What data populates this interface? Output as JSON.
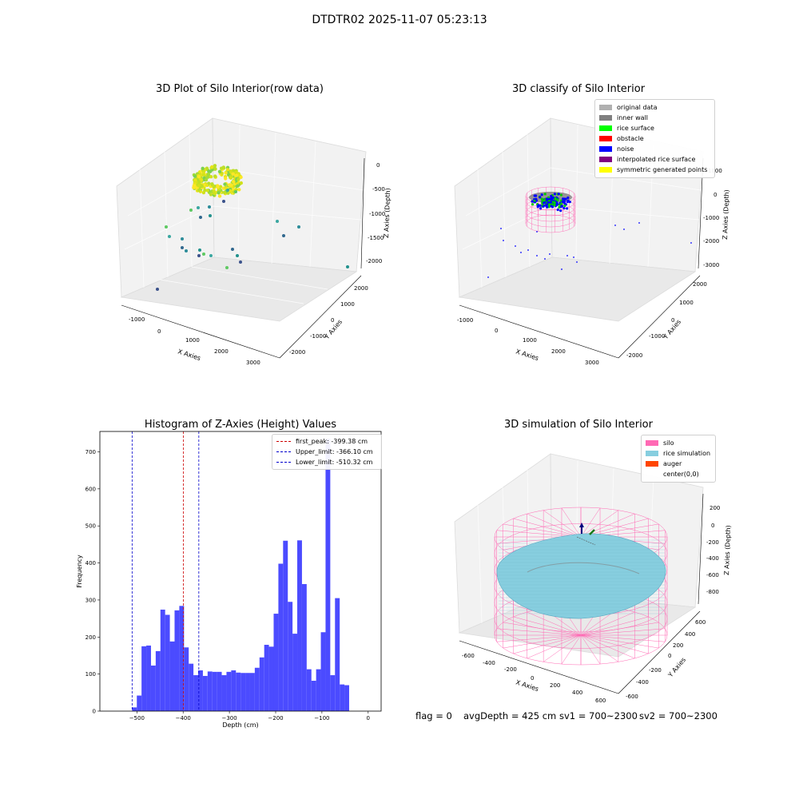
{
  "suptitle": "DTDTR02 2025-11-07 05:23:13",
  "colors": {
    "hist_bar": "#4b4bff",
    "peak_line": "#cc0000",
    "limit_line": "#0000cc",
    "silo": "#ff69b4",
    "rice": "#87cedf",
    "auger": "#ff4500"
  },
  "plot1": {
    "title": "3D Plot of Silo Interior(row data)",
    "xlabel": "X Axies",
    "ylabel": "Y Axies",
    "zlabel": "Z Axies (Depth)",
    "xticks": [
      "-1000",
      "0",
      "1000",
      "2000",
      "3000"
    ],
    "yticks": [
      "-2000",
      "-1000",
      "0",
      "1000",
      "2000"
    ],
    "zticks": [
      "0",
      "-500",
      "-1000",
      "-1500",
      "-2000"
    ]
  },
  "plot2": {
    "title": "3D classify of Silo Interior",
    "xlabel": "X Axies",
    "ylabel": "Y Axies",
    "zlabel": "Z Axies (Depth)",
    "xticks": [
      "-1000",
      "0",
      "1000",
      "2000",
      "3000"
    ],
    "yticks": [
      "-2000",
      "-1000",
      "0",
      "1000",
      "2000"
    ],
    "zticks": [
      "1000",
      "0",
      "-1000",
      "-2000",
      "-3000"
    ],
    "legend": [
      {
        "label": "original data",
        "color": "#b0b0b0"
      },
      {
        "label": "inner wall",
        "color": "#808080"
      },
      {
        "label": "rice surface",
        "color": "#00ff00"
      },
      {
        "label": "obstacle",
        "color": "#ff0000"
      },
      {
        "label": "noise",
        "color": "#0000ff"
      },
      {
        "label": "interpolated rice surface",
        "color": "#800080"
      },
      {
        "label": "symmetric generated points",
        "color": "#ffff00"
      }
    ]
  },
  "plot4": {
    "title": "3D simulation of Silo Interior",
    "xlabel": "X Axies",
    "ylabel": "Y Axies",
    "zlabel": "Z Axies (Depth)",
    "xticks": [
      "-600",
      "-400",
      "-200",
      "0",
      "200",
      "400",
      "600"
    ],
    "yticks": [
      "-600",
      "-400",
      "-200",
      "0",
      "200",
      "400",
      "600"
    ],
    "zticks": [
      "200",
      "0",
      "-200",
      "-400",
      "-600",
      "-800"
    ],
    "legend": [
      {
        "label": "silo",
        "color": "#ff69b4"
      },
      {
        "label": "rice simulation",
        "color": "#87cedf"
      },
      {
        "label": "auger",
        "color": "#ff4500"
      },
      {
        "label": "center(0,0)",
        "color": ""
      }
    ]
  },
  "chart_data": {
    "type": "bar",
    "title": "Histogram of Z-Axies (Height) Values",
    "xlabel": "Depth (cm)",
    "ylabel": "Frequency",
    "xlim": [
      -580,
      28
    ],
    "ylim": [
      0,
      755
    ],
    "xticks": [
      -500,
      -400,
      -300,
      -200,
      -100,
      0
    ],
    "yticks": [
      0,
      100,
      200,
      300,
      400,
      500,
      600,
      700
    ],
    "bin_start": -510.32,
    "bin_width": 10.2,
    "values": [
      10,
      42,
      175,
      177,
      123,
      162,
      274,
      260,
      188,
      272,
      284,
      172,
      128,
      97,
      110,
      95,
      107,
      106,
      106,
      97,
      106,
      110,
      104,
      103,
      103,
      103,
      117,
      145,
      179,
      174,
      263,
      398,
      460,
      295,
      209,
      461,
      343,
      113,
      82,
      113,
      213,
      735,
      97,
      305,
      72,
      70
    ],
    "lines": [
      {
        "label": "first_peak: -399.38 cm",
        "x": -399.38,
        "color": "#cc0000"
      },
      {
        "label": "Upper_limit: -366.10 cm",
        "x": -366.1,
        "color": "#0000cc"
      },
      {
        "label": "Lower_limit: -510.32 cm",
        "x": -510.32,
        "color": "#0000cc"
      }
    ],
    "grid": false,
    "legend_position": "top-right"
  },
  "status": {
    "flag": "flag = 0",
    "avg": "avgDepth = 425 cm",
    "sv1": "sv1 = 700~2300",
    "sv2": "sv2 = 700~2300"
  }
}
